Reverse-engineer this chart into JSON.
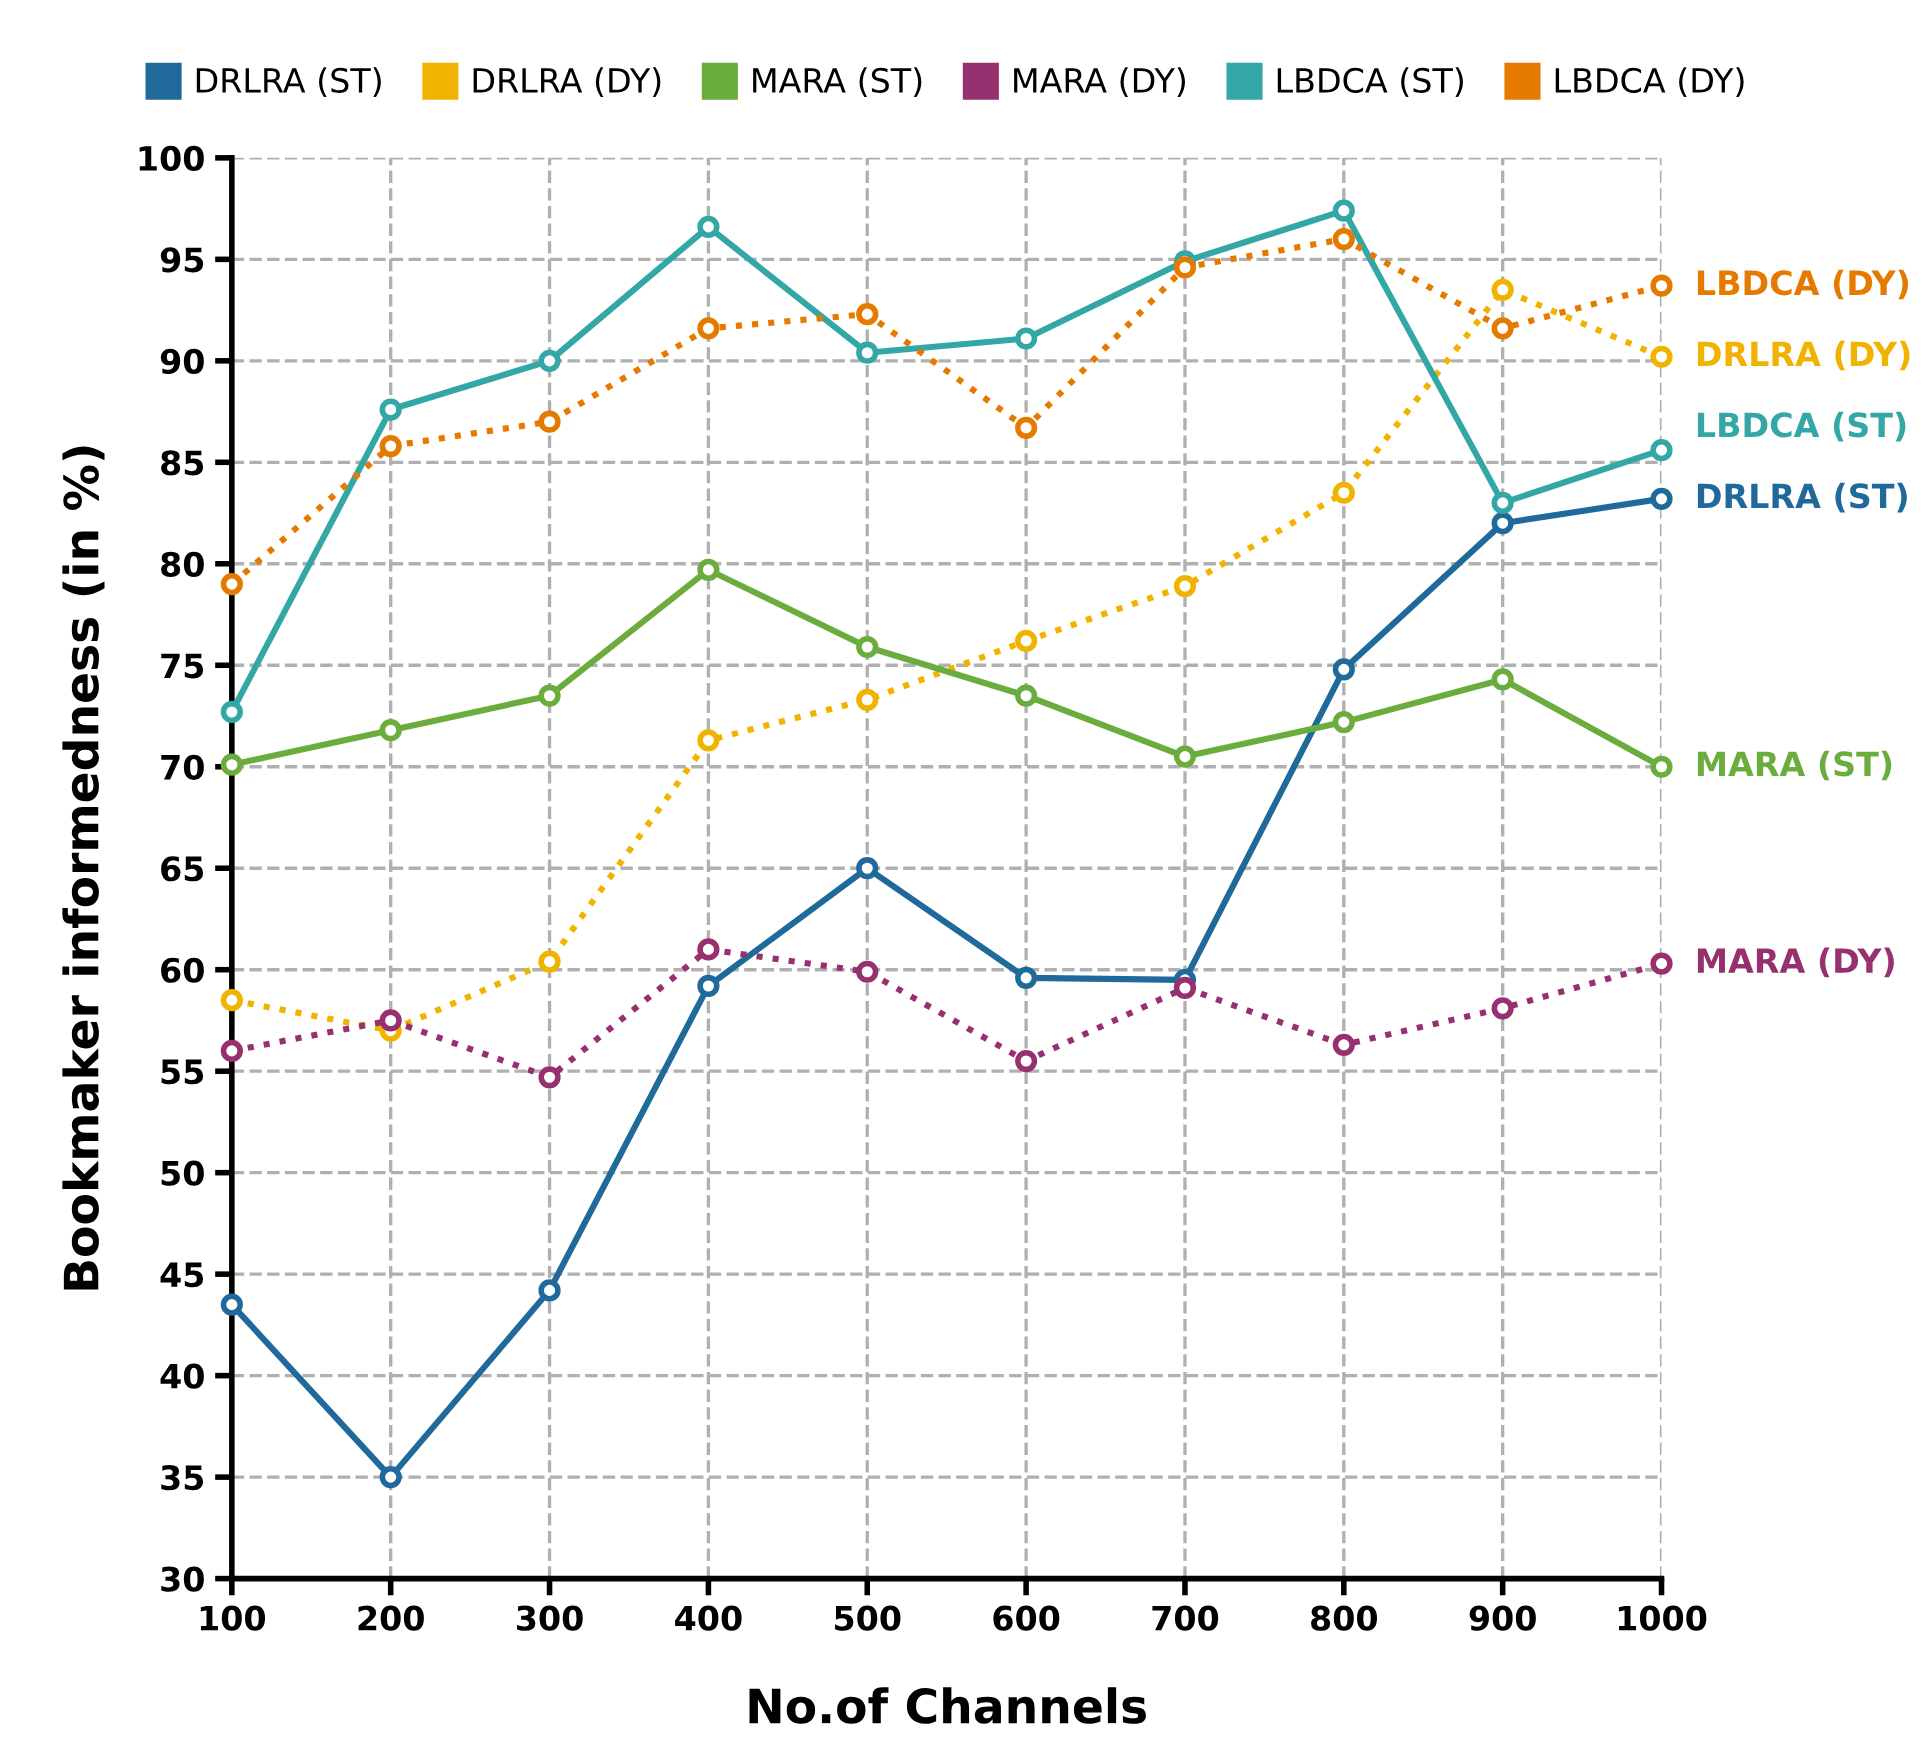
{
  "chart_data": {
    "type": "line",
    "xlabel": "No.of Channels",
    "ylabel": "Bookmaker informedness (in %)",
    "x": [
      100,
      200,
      300,
      400,
      500,
      600,
      700,
      800,
      900,
      1000
    ],
    "xlim": [
      100,
      1000
    ],
    "xticks": [
      100,
      200,
      300,
      400,
      500,
      600,
      700,
      800,
      900,
      1000
    ],
    "ylim": [
      30,
      100
    ],
    "yticks": [
      30,
      35,
      40,
      45,
      50,
      55,
      60,
      65,
      70,
      75,
      80,
      85,
      90,
      95,
      100
    ],
    "grid": true,
    "legend": "top",
    "marker": "circle",
    "series": [
      {
        "name": "DRLRA (ST)",
        "color": "#1f6a9a",
        "line_style": "solid",
        "values": [
          43.5,
          35,
          44.2,
          59.2,
          65,
          59.6,
          59.5,
          74.8,
          82,
          83.2
        ]
      },
      {
        "name": "DRLRA (DY)",
        "color": "#f0b400",
        "line_style": "dotted",
        "values": [
          58.5,
          57,
          60.4,
          71.3,
          73.3,
          76.2,
          78.9,
          83.5,
          93.5,
          90.2
        ]
      },
      {
        "name": "MARA (ST)",
        "color": "#6aad3d",
        "line_style": "solid",
        "values": [
          70.1,
          71.8,
          73.5,
          79.7,
          75.9,
          73.5,
          70.5,
          72.2,
          74.3,
          70
        ]
      },
      {
        "name": "MARA (DY)",
        "color": "#97306e",
        "line_style": "dotted",
        "values": [
          56,
          57.5,
          54.7,
          61,
          59.9,
          55.5,
          59.1,
          56.3,
          58.1,
          60.3
        ]
      },
      {
        "name": "LBDCA (ST)",
        "color": "#33a6a6",
        "line_style": "solid",
        "values": [
          72.7,
          87.6,
          90,
          96.6,
          90.4,
          91.1,
          94.9,
          97.4,
          83,
          85.6
        ]
      },
      {
        "name": "LBDCA (DY)",
        "color": "#e57a00",
        "line_style": "dotted",
        "values": [
          79,
          85.8,
          87,
          91.6,
          92.3,
          86.7,
          94.6,
          96,
          91.6,
          93.7
        ]
      }
    ]
  }
}
